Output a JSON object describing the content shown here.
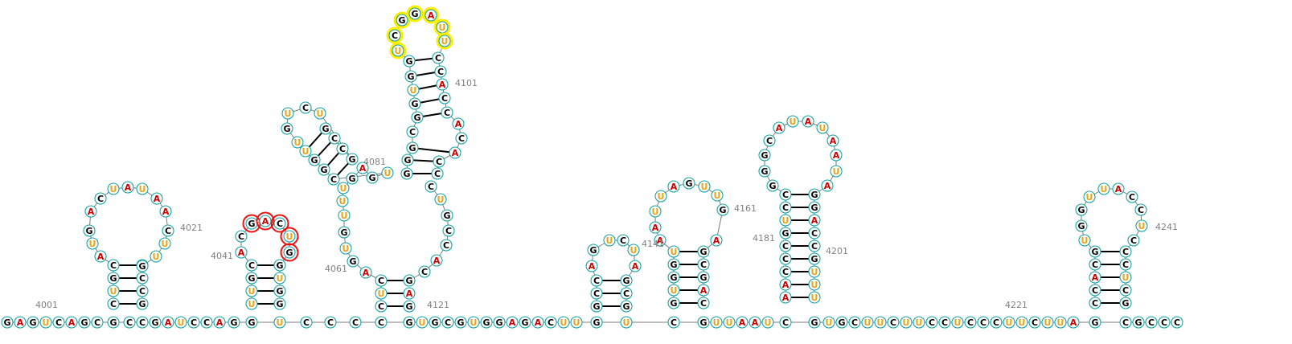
{
  "colors": {
    "G": "#000000",
    "C": "#000000",
    "A": "#cc0000",
    "U": "#e8a317",
    "ring": "#1aa3a3",
    "hl_yellow": "#ffee00",
    "hl_red": "#ee1111"
  },
  "position_labels": [
    "4001",
    "4021",
    "4041",
    "4061",
    "4081",
    "4101",
    "4121",
    "4141",
    "4161",
    "4181",
    "4201",
    "4221",
    "4241"
  ]
}
